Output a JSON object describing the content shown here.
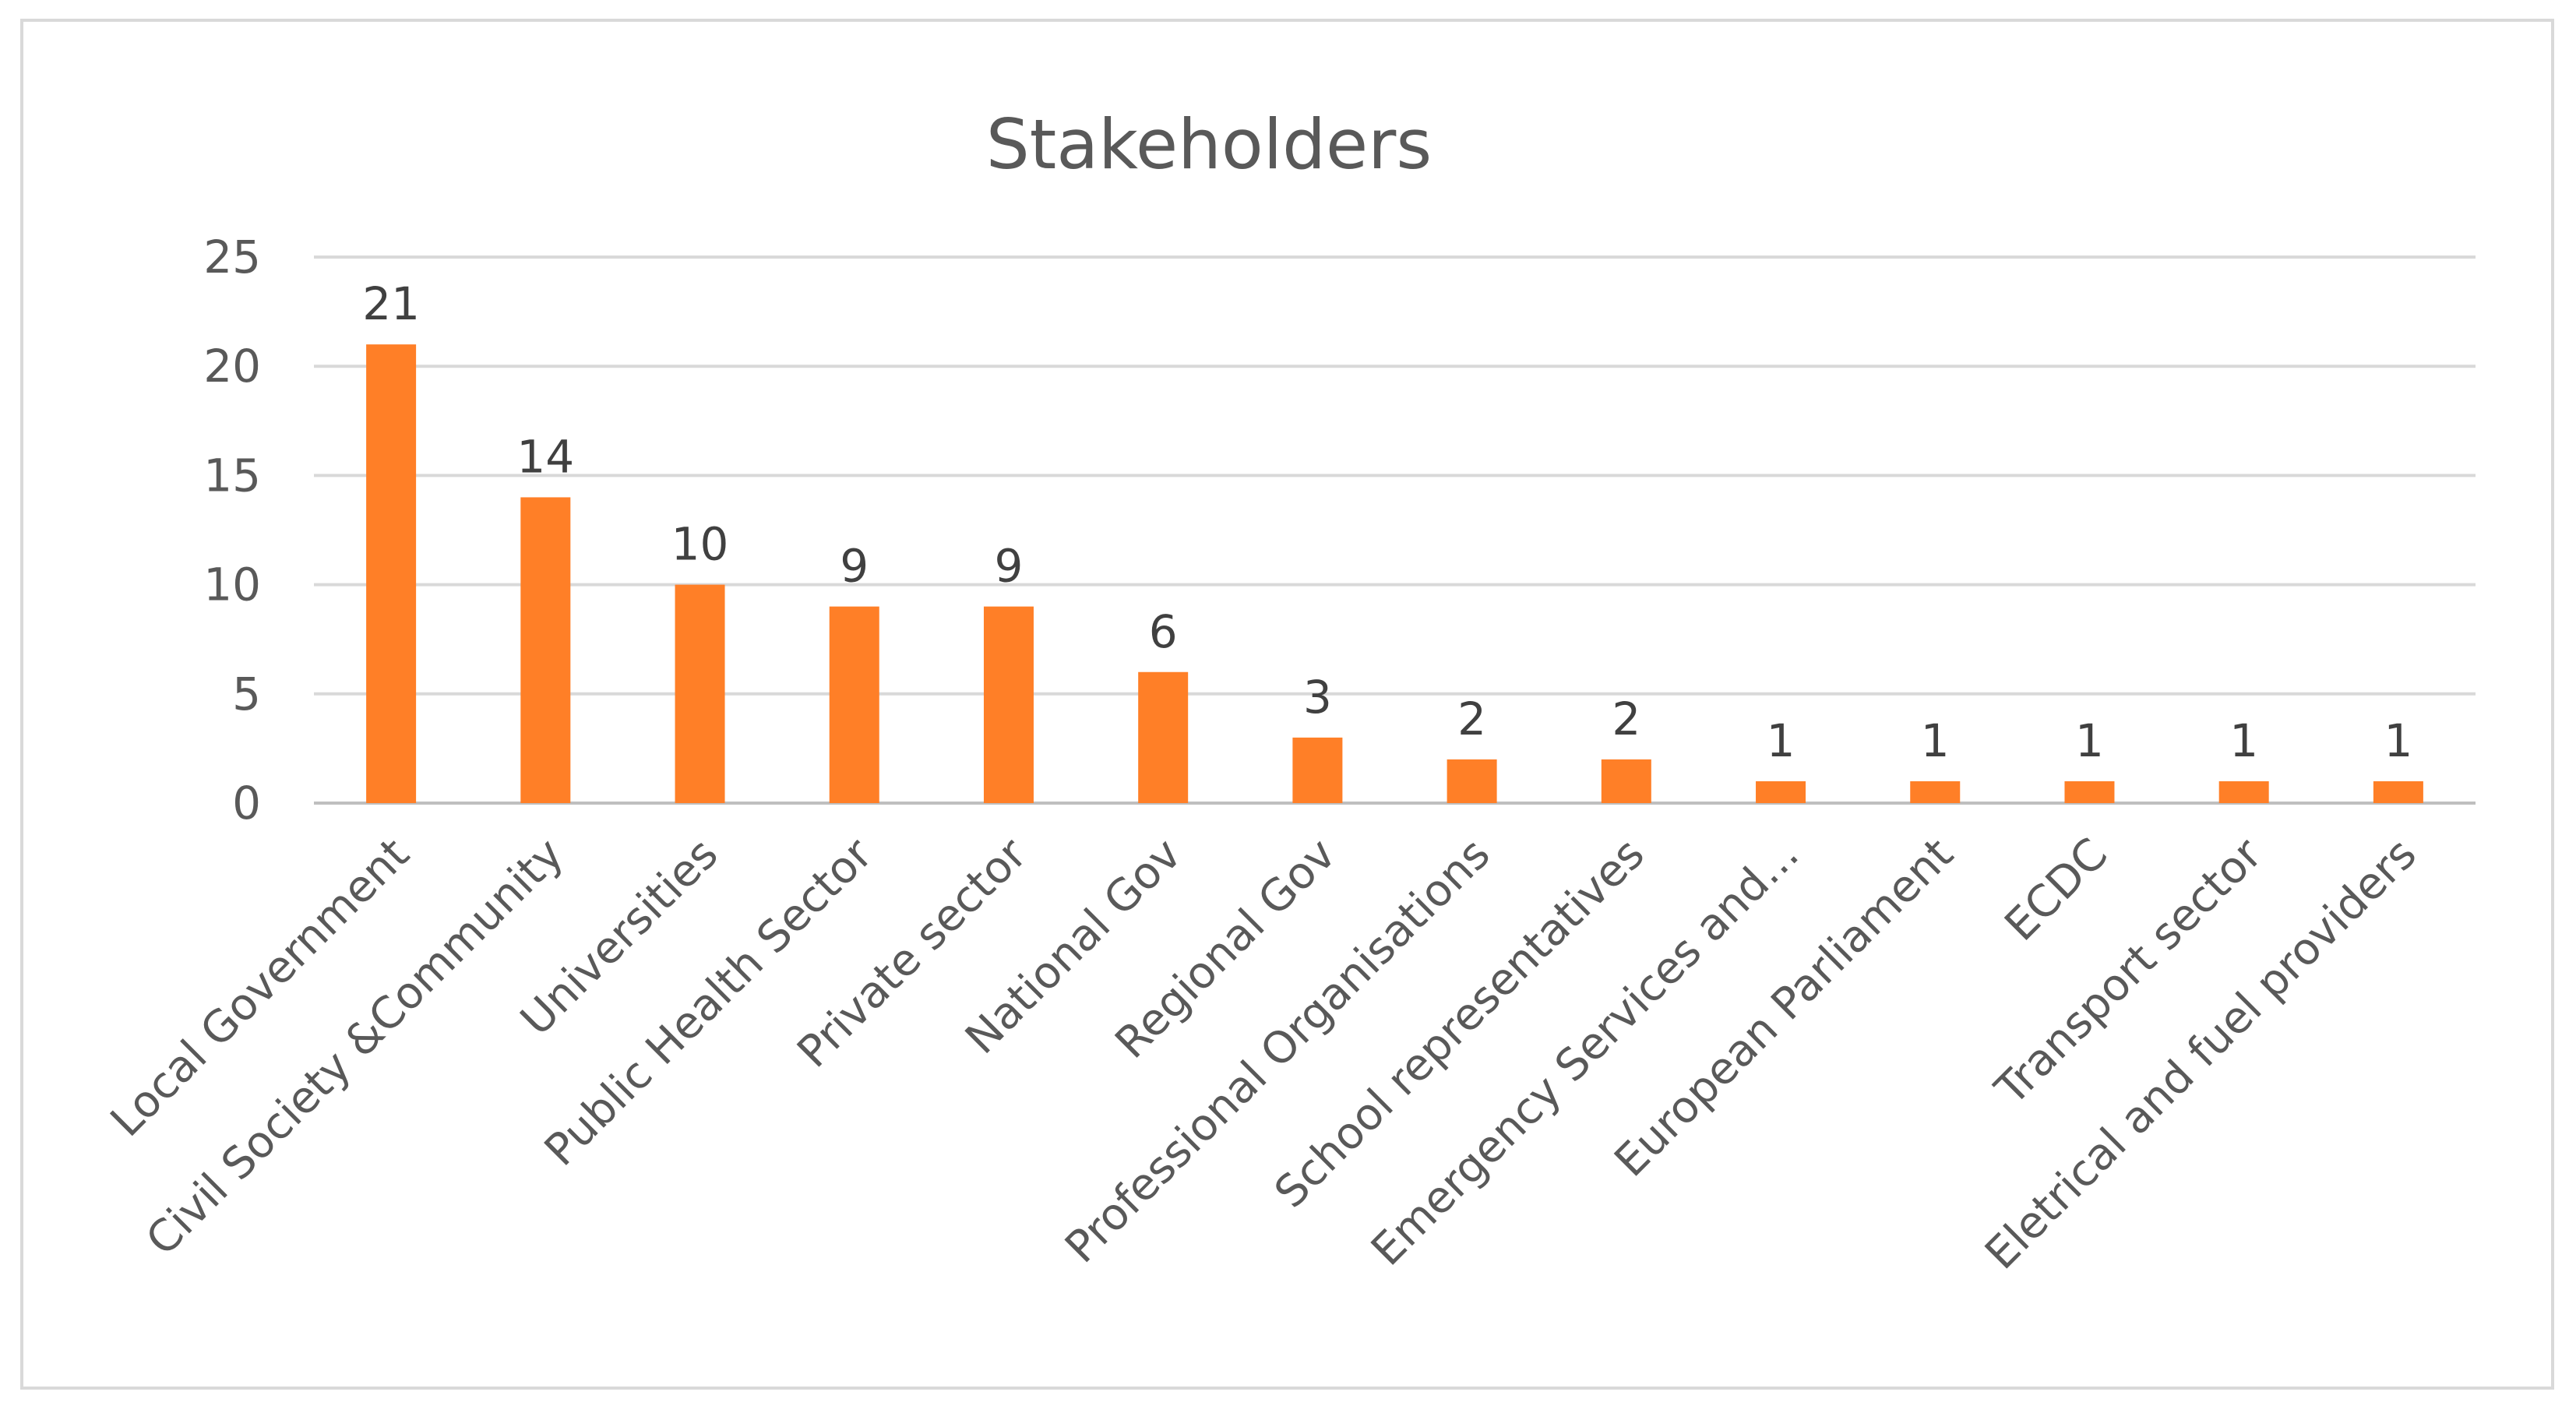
{
  "chart_data": {
    "type": "bar",
    "title": "Stakeholders",
    "xlabel": "",
    "ylabel": "",
    "ylim": [
      0,
      25
    ],
    "yticks": [
      0,
      5,
      10,
      15,
      20,
      25
    ],
    "grid": true,
    "legend": "none",
    "bar_color": "#FF7F27",
    "categories": [
      "Local Government",
      "Civil Society  &Community",
      "Universities",
      "Public Health Sector",
      "Private sector",
      "National Gov",
      "Regional Gov",
      "Professional Organisations",
      "School representatives",
      "Emergency Services and...",
      "European Parliament",
      "ECDC",
      "Transport sector",
      "Eletrical and fuel providers"
    ],
    "values": [
      21,
      14,
      10,
      9,
      9,
      6,
      3,
      2,
      2,
      1,
      1,
      1,
      1,
      1
    ]
  }
}
